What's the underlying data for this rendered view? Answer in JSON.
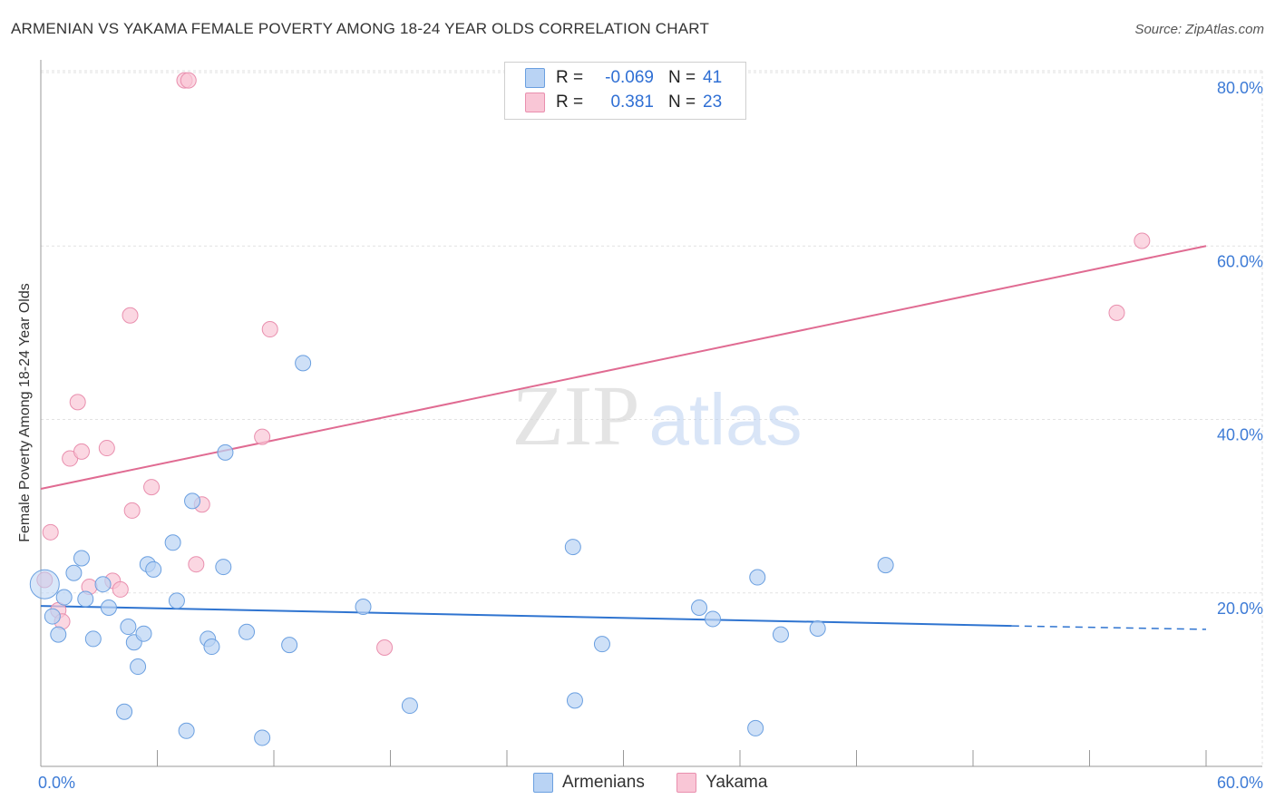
{
  "title": "ARMENIAN VS YAKAMA FEMALE POVERTY AMONG 18-24 YEAR OLDS CORRELATION CHART",
  "source": "Source: ZipAtlas.com",
  "watermark": {
    "zip": "ZIP",
    "atlas": "atlas"
  },
  "legend_top": {
    "rows": [
      {
        "r_label": "R =",
        "r_value": "-0.069",
        "n_label": "N =",
        "n_value": "41"
      },
      {
        "r_label": "R =",
        "r_value": "0.381",
        "n_label": "N =",
        "n_value": "23"
      }
    ]
  },
  "legend_bottom": [
    "Armenians",
    "Yakama"
  ],
  "colors": {
    "armenians_fill": "#b9d3f4",
    "armenians_stroke": "#6a9fe0",
    "armenians_line": "#2f74d0",
    "yakama_fill": "#f9c6d6",
    "yakama_stroke": "#e98fae",
    "yakama_line": "#e06b92",
    "axis_text": "#3d7bd6",
    "grid": "#e2e2e2"
  },
  "chart_data": {
    "type": "scatter",
    "title": "ARMENIAN VS YAKAMA FEMALE POVERTY AMONG 18-24 YEAR OLDS CORRELATION CHART",
    "xlabel": "",
    "ylabel": "Female Poverty Among 18-24 Year Olds",
    "xlim": [
      0,
      60
    ],
    "ylim": [
      0,
      80
    ],
    "x_tick_labels": [
      "0.0%",
      "60.0%"
    ],
    "y_ticks": [
      20,
      40,
      60,
      80
    ],
    "y_tick_labels": [
      "20.0%",
      "40.0%",
      "60.0%",
      "80.0%"
    ],
    "grid": true,
    "series": [
      {
        "name": "Armenians",
        "x": [
          0.2,
          0.6,
          1.2,
          0.9,
          1.7,
          2.1,
          2.3,
          2.7,
          3.2,
          3.5,
          4.3,
          4.5,
          4.8,
          5.0,
          5.3,
          5.5,
          5.8,
          6.8,
          7.0,
          7.5,
          7.8,
          8.6,
          8.8,
          9.4,
          9.5,
          10.6,
          11.4,
          12.8,
          13.5,
          16.6,
          19.0,
          27.4,
          27.5,
          28.9,
          33.9,
          34.6,
          36.8,
          36.9,
          38.1,
          40.0,
          43.5
        ],
        "y": [
          21.0,
          17.3,
          19.5,
          15.2,
          22.3,
          24.0,
          19.3,
          14.7,
          21.0,
          18.3,
          6.3,
          16.1,
          14.3,
          11.5,
          15.3,
          23.3,
          22.7,
          25.8,
          19.1,
          4.1,
          30.6,
          14.7,
          13.8,
          23.0,
          36.2,
          15.5,
          3.3,
          14.0,
          46.5,
          18.4,
          7.0,
          25.3,
          7.6,
          14.1,
          18.3,
          17.0,
          4.4,
          21.8,
          15.2,
          15.9,
          23.2
        ],
        "trend": {
          "x": [
            0,
            50,
            60
          ],
          "y": [
            18.5,
            16.2,
            15.8
          ],
          "solid_until_x": 50
        }
      },
      {
        "name": "Yakama",
        "x": [
          0.2,
          0.5,
          0.9,
          1.1,
          1.5,
          1.9,
          2.1,
          2.5,
          3.4,
          3.7,
          4.1,
          4.6,
          4.7,
          5.7,
          7.4,
          7.6,
          8.0,
          8.3,
          11.4,
          11.8,
          17.7,
          55.4,
          56.7
        ],
        "y": [
          21.5,
          27.0,
          18.0,
          16.7,
          35.5,
          42.0,
          36.3,
          20.7,
          36.7,
          21.4,
          20.4,
          52.0,
          29.5,
          32.2,
          79.1,
          79.1,
          23.3,
          30.2,
          38.0,
          50.4,
          13.7,
          52.3,
          60.6
        ],
        "trend": {
          "x": [
            0,
            60
          ],
          "y": [
            32.0,
            60.0
          ]
        }
      }
    ]
  }
}
